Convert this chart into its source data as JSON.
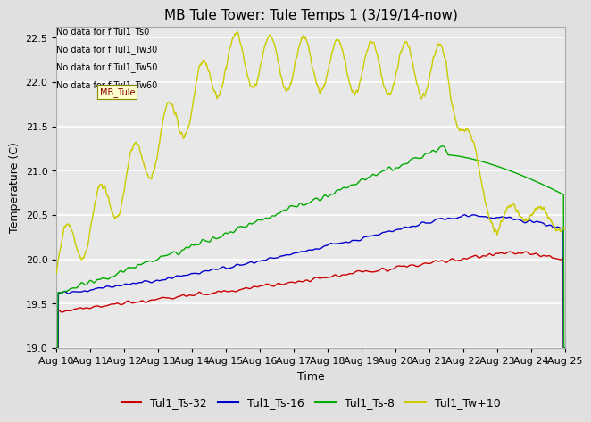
{
  "title": "MB Tule Tower: Tule Temps 1 (3/19/14-now)",
  "xlabel": "Time",
  "ylabel": "Temperature (C)",
  "ylim": [
    19.0,
    22.625
  ],
  "yticks": [
    19.0,
    19.5,
    20.0,
    20.5,
    21.0,
    21.5,
    22.0,
    22.5
  ],
  "x_label_days": [
    10,
    11,
    12,
    13,
    14,
    15,
    16,
    17,
    18,
    19,
    20,
    21,
    22,
    23,
    24,
    25
  ],
  "background_color": "#e0e0e0",
  "plot_bg_color": "#e8e8e8",
  "grid_color": "#ffffff",
  "colors": {
    "Tul1_Ts-32": "#cc0000",
    "Tul1_Ts-16": "#0000cc",
    "Tul1_Ts-8": "#00aa00",
    "Tul1_Tw+10": "#cccc00"
  },
  "legend_labels": [
    "Tul1_Ts-32",
    "Tul1_Ts-16",
    "Tul1_Ts-8",
    "Tul1_Tw+10"
  ],
  "no_data_texts": [
    "No data for f Tul1_Ts0",
    "No data for f Tul1_Tw30",
    "No data for f Tul1_Tw50",
    "No data for f Tul1_Tw60"
  ],
  "annotation_box_text": "MB_Tule",
  "title_fontsize": 11,
  "axis_label_fontsize": 9,
  "tick_fontsize": 8,
  "legend_fontsize": 9
}
